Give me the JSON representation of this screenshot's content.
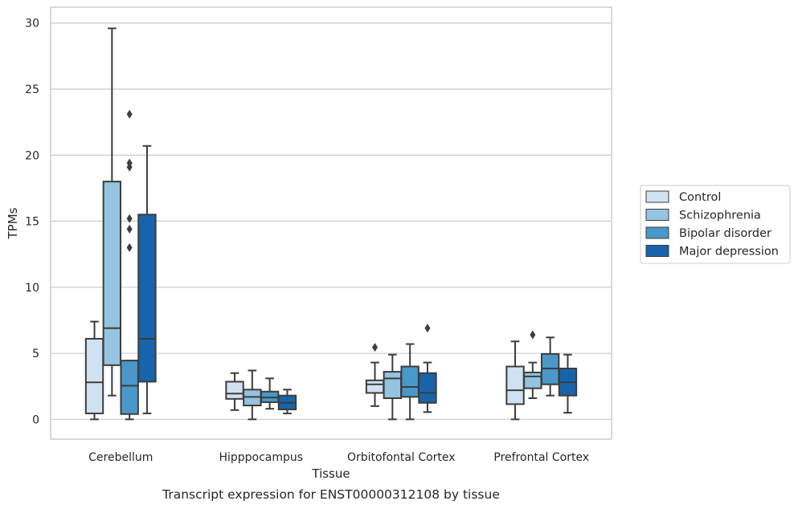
{
  "chart_data": {
    "type": "boxplot",
    "xlabel": "Tissue",
    "ylabel": "TPMs",
    "caption": "Transcript expression for ENST00000312108 by tissue",
    "ylim": [
      -1.5,
      31.2
    ],
    "yticks": [
      "0",
      "5",
      "10",
      "15",
      "20",
      "25",
      "30"
    ],
    "grid": true,
    "legend_position": "right",
    "categories": [
      "Cerebellum",
      "Hipppocampus",
      "Orbitofontal Cortex",
      "Prefrontal Cortex"
    ],
    "series": [
      {
        "name": "Control",
        "color": "#d0e1f2",
        "boxes": [
          {
            "whislo": 0.0,
            "q1": 0.45,
            "med": 2.8,
            "q3": 6.1,
            "whishi": 7.4,
            "fliers": []
          },
          {
            "whislo": 0.7,
            "q1": 1.55,
            "med": 1.95,
            "q3": 2.85,
            "whishi": 3.5,
            "fliers": []
          },
          {
            "whislo": 1.0,
            "q1": 2.0,
            "med": 2.65,
            "q3": 2.95,
            "whishi": 4.3,
            "fliers": [
              5.45
            ]
          },
          {
            "whislo": 0.0,
            "q1": 1.15,
            "med": 2.2,
            "q3": 4.0,
            "whishi": 5.9,
            "fliers": []
          }
        ]
      },
      {
        "name": "Schizophrenia",
        "color": "#94c4df",
        "boxes": [
          {
            "whislo": 1.8,
            "q1": 4.1,
            "med": 6.9,
            "q3": 18.0,
            "whishi": 29.6,
            "fliers": []
          },
          {
            "whislo": 0.0,
            "q1": 1.05,
            "med": 1.7,
            "q3": 2.25,
            "whishi": 3.7,
            "fliers": []
          },
          {
            "whislo": 0.0,
            "q1": 1.6,
            "med": 3.1,
            "q3": 3.6,
            "whishi": 4.9,
            "fliers": []
          },
          {
            "whislo": 1.6,
            "q1": 2.35,
            "med": 3.25,
            "q3": 3.55,
            "whishi": 4.3,
            "fliers": [
              6.4
            ]
          }
        ]
      },
      {
        "name": "Bipolar disorder",
        "color": "#4a98c9",
        "boxes": [
          {
            "whislo": 0.0,
            "q1": 0.4,
            "med": 2.55,
            "q3": 4.45,
            "whishi": 4.45,
            "fliers": [
              13.0,
              14.4,
              15.2,
              19.1,
              19.4,
              23.1
            ]
          },
          {
            "whislo": 0.8,
            "q1": 1.3,
            "med": 1.65,
            "q3": 2.1,
            "whishi": 3.1,
            "fliers": []
          },
          {
            "whislo": 0.0,
            "q1": 1.7,
            "med": 2.45,
            "q3": 4.0,
            "whishi": 5.7,
            "fliers": []
          },
          {
            "whislo": 1.8,
            "q1": 2.65,
            "med": 3.85,
            "q3": 4.95,
            "whishi": 6.2,
            "fliers": []
          }
        ]
      },
      {
        "name": "Major depression",
        "color": "#1764ab",
        "boxes": [
          {
            "whislo": 0.45,
            "q1": 2.85,
            "med": 6.1,
            "q3": 15.5,
            "whishi": 20.7,
            "fliers": []
          },
          {
            "whislo": 0.45,
            "q1": 0.75,
            "med": 1.25,
            "q3": 1.8,
            "whishi": 2.25,
            "fliers": []
          },
          {
            "whislo": 0.55,
            "q1": 1.25,
            "med": 2.0,
            "q3": 3.5,
            "whishi": 4.3,
            "fliers": [
              6.9
            ]
          },
          {
            "whislo": 0.5,
            "q1": 1.8,
            "med": 2.8,
            "q3": 3.85,
            "whishi": 4.9,
            "fliers": []
          }
        ]
      }
    ]
  }
}
